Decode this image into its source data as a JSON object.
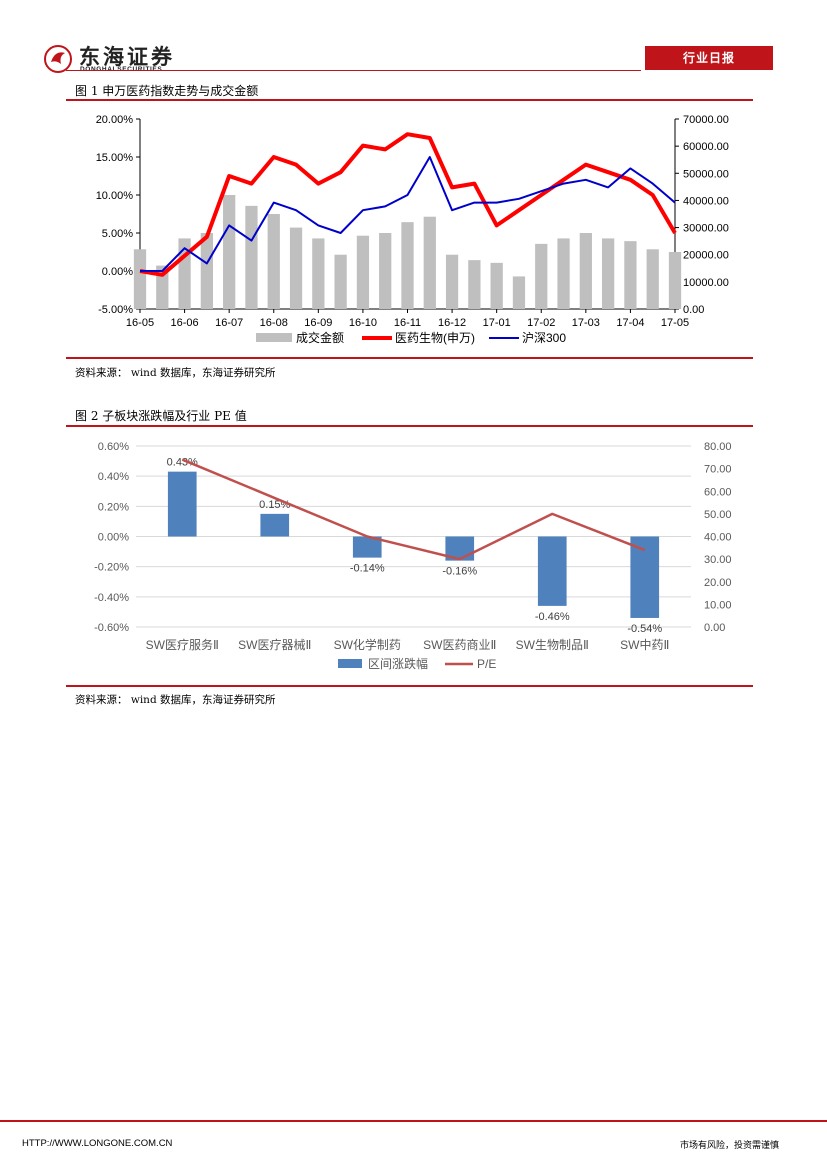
{
  "header": {
    "logo_cn": "东海证券",
    "logo_en": "DONGHAI SECURITIES",
    "report_type": "行业日报"
  },
  "figure1": {
    "title": "图 1    申万医药指数走势与成交金额",
    "source": "资料来源：    wind 数据库，东海证券研究所"
  },
  "figure2": {
    "title": "图 2    子板块涨跌幅及行业 PE 值",
    "source": "资料来源：    wind 数据库，东海证券研究所"
  },
  "footer": {
    "url": "HTTP://WWW.LONGONE.COM.CN",
    "note": "市场有风险，投资需谨慎"
  },
  "colors": {
    "brand_red": "#c0141b",
    "bar_blue": "#4f81bd",
    "pe_line": "#c0504d",
    "volume_gray": "#bfbfbf",
    "index_red": "#ff0000",
    "hs300_blue": "#0000cc"
  },
  "chart_data": [
    {
      "type": "line",
      "x_ticks": [
        "16-05",
        "16-06",
        "16-07",
        "16-08",
        "16-09",
        "16-10",
        "16-11",
        "16-12",
        "17-01",
        "17-02",
        "17-03",
        "17-04",
        "17-05"
      ],
      "ylim_left": [
        -0.05,
        0.2
      ],
      "yticks_left": [
        "-5.00%",
        "0.00%",
        "5.00%",
        "10.00%",
        "15.00%",
        "20.00%"
      ],
      "ylim_right": [
        0,
        70000
      ],
      "yticks_right": [
        "0.00",
        "10000.00",
        "20000.00",
        "30000.00",
        "40000.00",
        "50000.00",
        "60000.00",
        "70000.00"
      ],
      "legend": [
        "成交金额",
        "医药生物(申万)",
        "沪深300"
      ],
      "legend_position": "bottom",
      "series": [
        {
          "name": "成交金额",
          "type": "bar",
          "axis": "right",
          "x": [
            "16-05",
            "16-05b",
            "16-06",
            "16-06b",
            "16-07",
            "16-07b",
            "16-08",
            "16-08b",
            "16-09",
            "16-09b",
            "16-10",
            "16-10b",
            "16-11",
            "16-11b",
            "16-12",
            "16-12b",
            "17-01",
            "17-01b",
            "17-02",
            "17-02b",
            "17-03",
            "17-03b",
            "17-04",
            "17-04b",
            "17-05"
          ],
          "values": [
            22000,
            16000,
            26000,
            28000,
            42000,
            38000,
            35000,
            30000,
            26000,
            20000,
            27000,
            28000,
            32000,
            34000,
            20000,
            18000,
            17000,
            12000,
            24000,
            26000,
            28000,
            26000,
            25000,
            22000,
            21000
          ]
        },
        {
          "name": "医药生物(申万)",
          "type": "line",
          "axis": "left",
          "x": [
            "16-05",
            "16-05b",
            "16-06",
            "16-06b",
            "16-07",
            "16-07b",
            "16-08",
            "16-08b",
            "16-09",
            "16-09b",
            "16-10",
            "16-10b",
            "16-11",
            "16-11b",
            "16-12",
            "16-12b",
            "17-01",
            "17-01b",
            "17-02",
            "17-02b",
            "17-03",
            "17-03b",
            "17-04",
            "17-04b",
            "17-05"
          ],
          "values": [
            0.0,
            -0.005,
            0.02,
            0.045,
            0.125,
            0.115,
            0.15,
            0.14,
            0.115,
            0.13,
            0.165,
            0.16,
            0.18,
            0.175,
            0.11,
            0.115,
            0.06,
            0.08,
            0.1,
            0.12,
            0.14,
            0.13,
            0.12,
            0.1,
            0.05
          ]
        },
        {
          "name": "沪深300",
          "type": "line",
          "axis": "left",
          "x": [
            "16-05",
            "16-05b",
            "16-06",
            "16-06b",
            "16-07",
            "16-07b",
            "16-08",
            "16-08b",
            "16-09",
            "16-09b",
            "16-10",
            "16-10b",
            "16-11",
            "16-11b",
            "16-12",
            "16-12b",
            "17-01",
            "17-01b",
            "17-02",
            "17-02b",
            "17-03",
            "17-03b",
            "17-04",
            "17-04b",
            "17-05"
          ],
          "values": [
            0.0,
            0.0,
            0.03,
            0.01,
            0.06,
            0.04,
            0.09,
            0.08,
            0.06,
            0.05,
            0.08,
            0.085,
            0.1,
            0.15,
            0.08,
            0.09,
            0.09,
            0.095,
            0.105,
            0.115,
            0.12,
            0.11,
            0.135,
            0.115,
            0.09
          ]
        }
      ]
    },
    {
      "type": "bar",
      "categories": [
        "SW医疗服务Ⅱ",
        "SW医疗器械Ⅱ",
        "SW化学制药",
        "SW医药商业Ⅱ",
        "SW生物制品Ⅱ",
        "SW中药Ⅱ"
      ],
      "ylim_left": [
        -0.6,
        0.6
      ],
      "yticks_left": [
        "-0.60%",
        "-0.40%",
        "-0.20%",
        "0.00%",
        "0.20%",
        "0.40%",
        "0.60%"
      ],
      "ylim_right": [
        0,
        80
      ],
      "yticks_right": [
        "0.00",
        "10.00",
        "20.00",
        "30.00",
        "40.00",
        "50.00",
        "60.00",
        "70.00",
        "80.00"
      ],
      "legend": [
        "区间涨跌幅",
        "P/E"
      ],
      "legend_position": "bottom",
      "series": [
        {
          "name": "区间涨跌幅",
          "type": "bar",
          "axis": "left",
          "values": [
            0.43,
            0.15,
            -0.14,
            -0.16,
            -0.46,
            -0.54
          ],
          "labels": [
            "0.43%",
            "0.15%",
            "-0.14%",
            "-0.16%",
            "-0.46%",
            "-0.54%"
          ]
        },
        {
          "name": "P/E",
          "type": "line",
          "axis": "right",
          "values": [
            74,
            57,
            40,
            30,
            50,
            34
          ]
        }
      ]
    }
  ]
}
